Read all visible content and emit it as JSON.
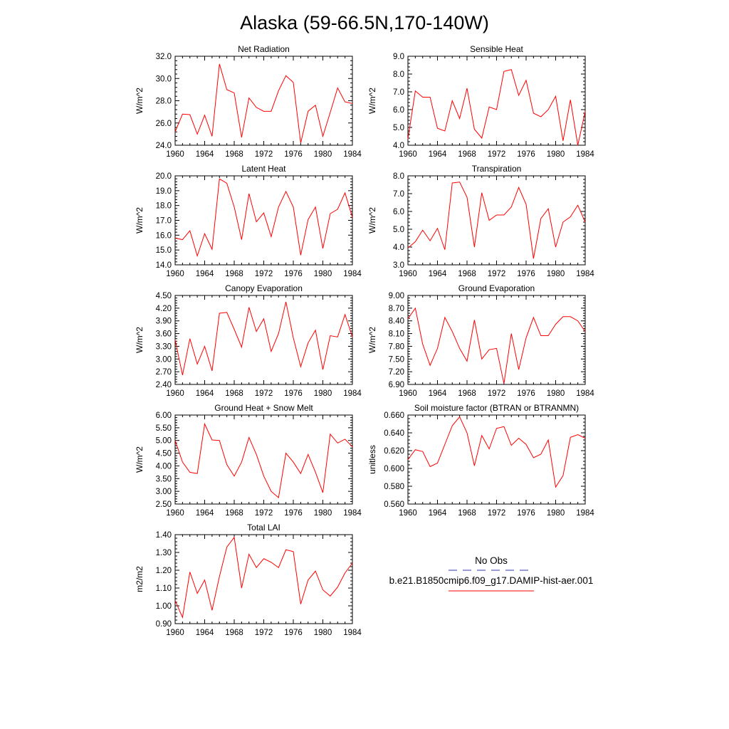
{
  "title": "Alaska (59-66.5N,170-140W)",
  "legend": {
    "obs_label": "No Obs",
    "model_label": "b.e21.B1850cmip6.f09_g17.DAMIP-hist-aer.001",
    "obs_color": "#3333aa",
    "model_color": "#ff0000"
  },
  "line_color": "#ff0000",
  "chart_data": [
    {
      "type": "line",
      "title": "Net Radiation",
      "ylabel": "W/m^2",
      "xlabel": "",
      "xlim": [
        1960,
        1984
      ],
      "ylim": [
        24.0,
        32.0
      ],
      "xticks": [
        "1960",
        "1964",
        "1968",
        "1972",
        "1976",
        "1980",
        "1984"
      ],
      "yticks": [
        "24.0",
        "26.0",
        "28.0",
        "30.0",
        "32.0"
      ],
      "x": [
        1960,
        1961,
        1962,
        1963,
        1964,
        1965,
        1966,
        1967,
        1968,
        1969,
        1970,
        1971,
        1972,
        1973,
        1974,
        1975,
        1976,
        1977,
        1978,
        1979,
        1980,
        1981,
        1982,
        1983,
        1984
      ],
      "series": [
        {
          "values": [
            25.2,
            26.8,
            26.75,
            25.0,
            26.7,
            24.8,
            31.3,
            29.0,
            28.7,
            24.7,
            28.25,
            27.4,
            27.05,
            27.05,
            28.9,
            30.25,
            29.65,
            24.2,
            27.05,
            27.6,
            24.8,
            26.95,
            29.15,
            27.9,
            27.75
          ]
        }
      ]
    },
    {
      "type": "line",
      "title": "Sensible Heat",
      "ylabel": "W/m^2",
      "xlabel": "",
      "xlim": [
        1960,
        1984
      ],
      "ylim": [
        4.0,
        9.0
      ],
      "xticks": [
        "1960",
        "1964",
        "1968",
        "1972",
        "1976",
        "1980",
        "1984"
      ],
      "yticks": [
        "4.0",
        "5.0",
        "6.0",
        "7.0",
        "8.0",
        "9.0"
      ],
      "x": [
        1960,
        1961,
        1962,
        1963,
        1964,
        1965,
        1966,
        1967,
        1968,
        1969,
        1970,
        1971,
        1972,
        1973,
        1974,
        1975,
        1976,
        1977,
        1978,
        1979,
        1980,
        1981,
        1982,
        1983,
        1984
      ],
      "series": [
        {
          "values": [
            4.35,
            7.05,
            6.7,
            6.7,
            4.95,
            4.8,
            6.5,
            5.5,
            7.2,
            4.9,
            4.4,
            6.15,
            6.0,
            8.15,
            8.25,
            6.8,
            7.65,
            5.8,
            5.6,
            6.0,
            6.75,
            4.25,
            6.55,
            4.0,
            5.9
          ]
        }
      ]
    },
    {
      "type": "line",
      "title": "Latent Heat",
      "ylabel": "W/m^2",
      "xlabel": "",
      "xlim": [
        1960,
        1984
      ],
      "ylim": [
        14.0,
        20.0
      ],
      "xticks": [
        "1960",
        "1964",
        "1968",
        "1972",
        "1976",
        "1980",
        "1984"
      ],
      "yticks": [
        "14.0",
        "15.0",
        "16.0",
        "17.0",
        "18.0",
        "19.0",
        "20.0"
      ],
      "x": [
        1960,
        1961,
        1962,
        1963,
        1964,
        1965,
        1966,
        1967,
        1968,
        1969,
        1970,
        1971,
        1972,
        1973,
        1974,
        1975,
        1976,
        1977,
        1978,
        1979,
        1980,
        1981,
        1982,
        1983,
        1984
      ],
      "series": [
        {
          "values": [
            15.8,
            15.7,
            16.3,
            14.6,
            16.1,
            15.05,
            19.8,
            19.5,
            17.9,
            15.7,
            18.8,
            16.9,
            17.5,
            15.9,
            17.9,
            18.95,
            17.9,
            14.65,
            17.05,
            17.9,
            15.1,
            17.45,
            17.75,
            18.85,
            17.2
          ]
        }
      ]
    },
    {
      "type": "line",
      "title": "Transpiration",
      "ylabel": "W/m^2",
      "xlabel": "",
      "xlim": [
        1960,
        1984
      ],
      "ylim": [
        3.0,
        8.0
      ],
      "xticks": [
        "1960",
        "1964",
        "1968",
        "1972",
        "1976",
        "1980",
        "1984"
      ],
      "yticks": [
        "3.0",
        "4.0",
        "5.0",
        "6.0",
        "7.0",
        "8.0"
      ],
      "x": [
        1960,
        1961,
        1962,
        1963,
        1964,
        1965,
        1966,
        1967,
        1968,
        1969,
        1970,
        1971,
        1972,
        1973,
        1974,
        1975,
        1976,
        1977,
        1978,
        1979,
        1980,
        1981,
        1982,
        1983,
        1984
      ],
      "series": [
        {
          "values": [
            3.95,
            4.3,
            4.95,
            4.35,
            5.05,
            3.85,
            7.6,
            7.65,
            6.8,
            4.0,
            7.05,
            5.5,
            5.8,
            5.8,
            6.25,
            7.35,
            6.4,
            3.35,
            5.6,
            6.15,
            4.0,
            5.4,
            5.7,
            6.35,
            5.4
          ]
        }
      ]
    },
    {
      "type": "line",
      "title": "Canopy Evaporation",
      "ylabel": "W/m^2",
      "xlabel": "",
      "xlim": [
        1960,
        1984
      ],
      "ylim": [
        2.4,
        4.5
      ],
      "xticks": [
        "1960",
        "1964",
        "1968",
        "1972",
        "1976",
        "1980",
        "1984"
      ],
      "yticks": [
        "2.40",
        "2.70",
        "3.00",
        "3.30",
        "3.60",
        "3.90",
        "4.20",
        "4.50"
      ],
      "x": [
        1960,
        1961,
        1962,
        1963,
        1964,
        1965,
        1966,
        1967,
        1968,
        1969,
        1970,
        1971,
        1972,
        1973,
        1974,
        1975,
        1976,
        1977,
        1978,
        1979,
        1980,
        1981,
        1982,
        1983,
        1984
      ],
      "series": [
        {
          "values": [
            3.45,
            2.62,
            3.48,
            2.88,
            3.3,
            2.72,
            4.08,
            4.1,
            3.7,
            3.28,
            4.22,
            3.65,
            3.95,
            3.18,
            3.6,
            4.35,
            3.5,
            2.82,
            3.38,
            3.68,
            2.75,
            3.55,
            3.52,
            4.05,
            3.52
          ]
        }
      ]
    },
    {
      "type": "line",
      "title": "Ground Evaporation",
      "ylabel": "W/m^2",
      "xlabel": "",
      "xlim": [
        1960,
        1984
      ],
      "ylim": [
        6.9,
        9.0
      ],
      "xticks": [
        "1960",
        "1964",
        "1968",
        "1972",
        "1976",
        "1980",
        "1984"
      ],
      "yticks": [
        "6.90",
        "7.20",
        "7.50",
        "7.80",
        "8.10",
        "8.40",
        "8.70",
        "9.00"
      ],
      "x": [
        1960,
        1961,
        1962,
        1963,
        1964,
        1965,
        1966,
        1967,
        1968,
        1969,
        1970,
        1971,
        1972,
        1973,
        1974,
        1975,
        1976,
        1977,
        1978,
        1979,
        1980,
        1981,
        1982,
        1983,
        1984
      ],
      "series": [
        {
          "values": [
            8.45,
            8.7,
            7.85,
            7.35,
            7.75,
            8.48,
            8.15,
            7.75,
            7.45,
            8.42,
            7.5,
            7.72,
            7.75,
            6.92,
            8.1,
            7.25,
            8.0,
            8.48,
            8.05,
            8.05,
            8.32,
            8.5,
            8.5,
            8.4,
            8.15
          ]
        }
      ]
    },
    {
      "type": "line",
      "title": "Ground Heat + Snow Melt",
      "ylabel": "W/m^2",
      "xlabel": "",
      "xlim": [
        1960,
        1984
      ],
      "ylim": [
        2.5,
        6.0
      ],
      "xticks": [
        "1960",
        "1964",
        "1968",
        "1972",
        "1976",
        "1980",
        "1984"
      ],
      "yticks": [
        "2.50",
        "3.00",
        "3.50",
        "4.00",
        "4.50",
        "5.00",
        "5.50",
        "6.00"
      ],
      "x": [
        1960,
        1961,
        1962,
        1963,
        1964,
        1965,
        1966,
        1967,
        1968,
        1969,
        1970,
        1971,
        1972,
        1973,
        1974,
        1975,
        1976,
        1977,
        1978,
        1979,
        1980,
        1981,
        1982,
        1983,
        1984
      ],
      "series": [
        {
          "values": [
            5.0,
            4.15,
            3.75,
            3.7,
            5.65,
            5.02,
            5.0,
            4.05,
            3.6,
            4.15,
            5.12,
            4.45,
            3.6,
            3.0,
            2.75,
            4.5,
            4.15,
            3.7,
            4.45,
            3.75,
            2.95,
            5.25,
            4.9,
            5.05,
            4.75
          ]
        }
      ]
    },
    {
      "type": "line",
      "title": "Soil moisture factor (BTRAN or BTRANMN)",
      "ylabel": "unitless",
      "xlabel": "",
      "xlim": [
        1960,
        1984
      ],
      "ylim": [
        0.56,
        0.66
      ],
      "xticks": [
        "1960",
        "1964",
        "1968",
        "1972",
        "1976",
        "1980",
        "1984"
      ],
      "yticks": [
        "0.560",
        "0.580",
        "0.600",
        "0.620",
        "0.640",
        "0.660"
      ],
      "x": [
        1960,
        1961,
        1962,
        1963,
        1964,
        1965,
        1966,
        1967,
        1968,
        1969,
        1970,
        1971,
        1972,
        1973,
        1974,
        1975,
        1976,
        1977,
        1978,
        1979,
        1980,
        1981,
        1982,
        1983,
        1984
      ],
      "series": [
        {
          "values": [
            0.61,
            0.621,
            0.619,
            0.602,
            0.606,
            0.627,
            0.648,
            0.658,
            0.64,
            0.603,
            0.637,
            0.622,
            0.645,
            0.647,
            0.626,
            0.634,
            0.627,
            0.612,
            0.616,
            0.632,
            0.579,
            0.592,
            0.635,
            0.638,
            0.634
          ]
        }
      ]
    },
    {
      "type": "line",
      "title": "Total LAI",
      "ylabel": "m2/m2",
      "xlabel": "",
      "xlim": [
        1960,
        1984
      ],
      "ylim": [
        0.9,
        1.4
      ],
      "xticks": [
        "1960",
        "1964",
        "1968",
        "1972",
        "1976",
        "1980",
        "1984"
      ],
      "yticks": [
        "0.90",
        "1.00",
        "1.10",
        "1.20",
        "1.30",
        "1.40"
      ],
      "x": [
        1960,
        1961,
        1962,
        1963,
        1964,
        1965,
        1966,
        1967,
        1968,
        1969,
        1970,
        1971,
        1972,
        1973,
        1974,
        1975,
        1976,
        1977,
        1978,
        1979,
        1980,
        1981,
        1982,
        1983,
        1984
      ],
      "series": [
        {
          "values": [
            1.03,
            0.935,
            1.19,
            1.07,
            1.145,
            0.975,
            1.165,
            1.33,
            1.385,
            1.1,
            1.29,
            1.215,
            1.265,
            1.245,
            1.215,
            1.315,
            1.305,
            1.01,
            1.145,
            1.195,
            1.09,
            1.055,
            1.105,
            1.185,
            1.24
          ]
        }
      ]
    }
  ]
}
